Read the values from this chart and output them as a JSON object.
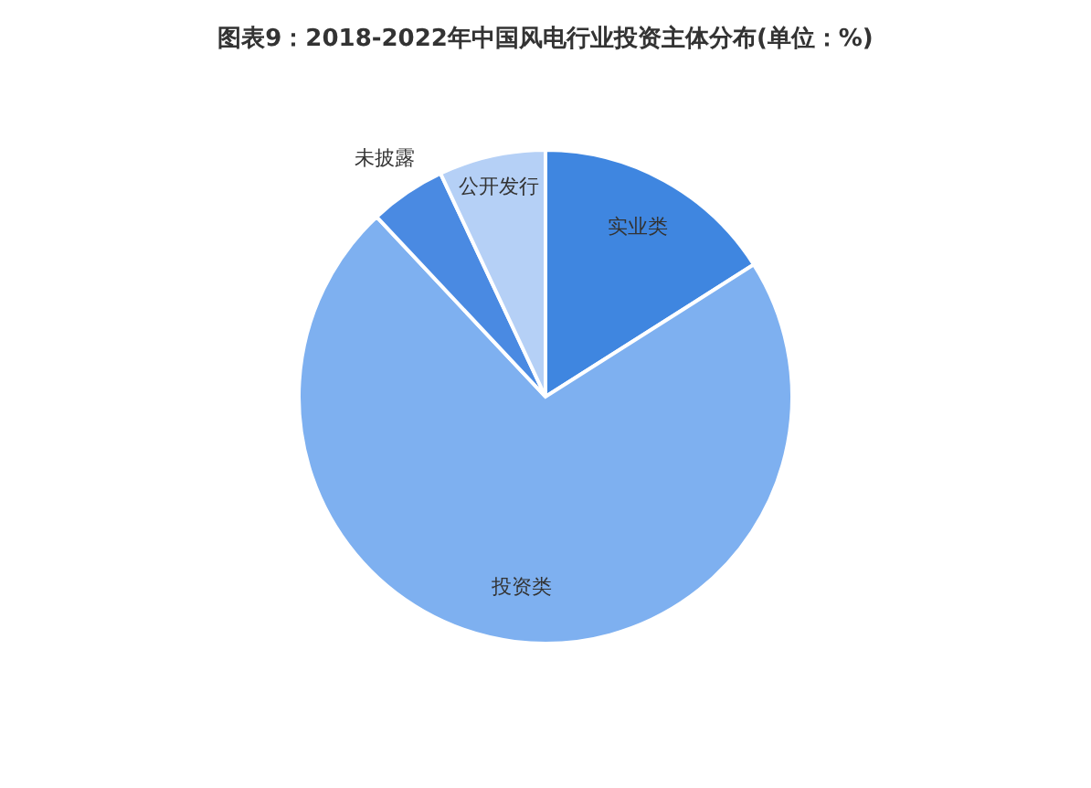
{
  "chart_data": {
    "type": "pie",
    "title": "图表9：2018-2022年中国风电行业投资主体分布(单位：%)",
    "categories": [
      "实业类",
      "投资类",
      "未披露",
      "公开发行"
    ],
    "values": [
      16,
      72,
      5,
      7
    ],
    "colors": [
      "#3f86e0",
      "#7eb0f0",
      "#4a8ae2",
      "#b5d0f6"
    ],
    "legend": false
  }
}
